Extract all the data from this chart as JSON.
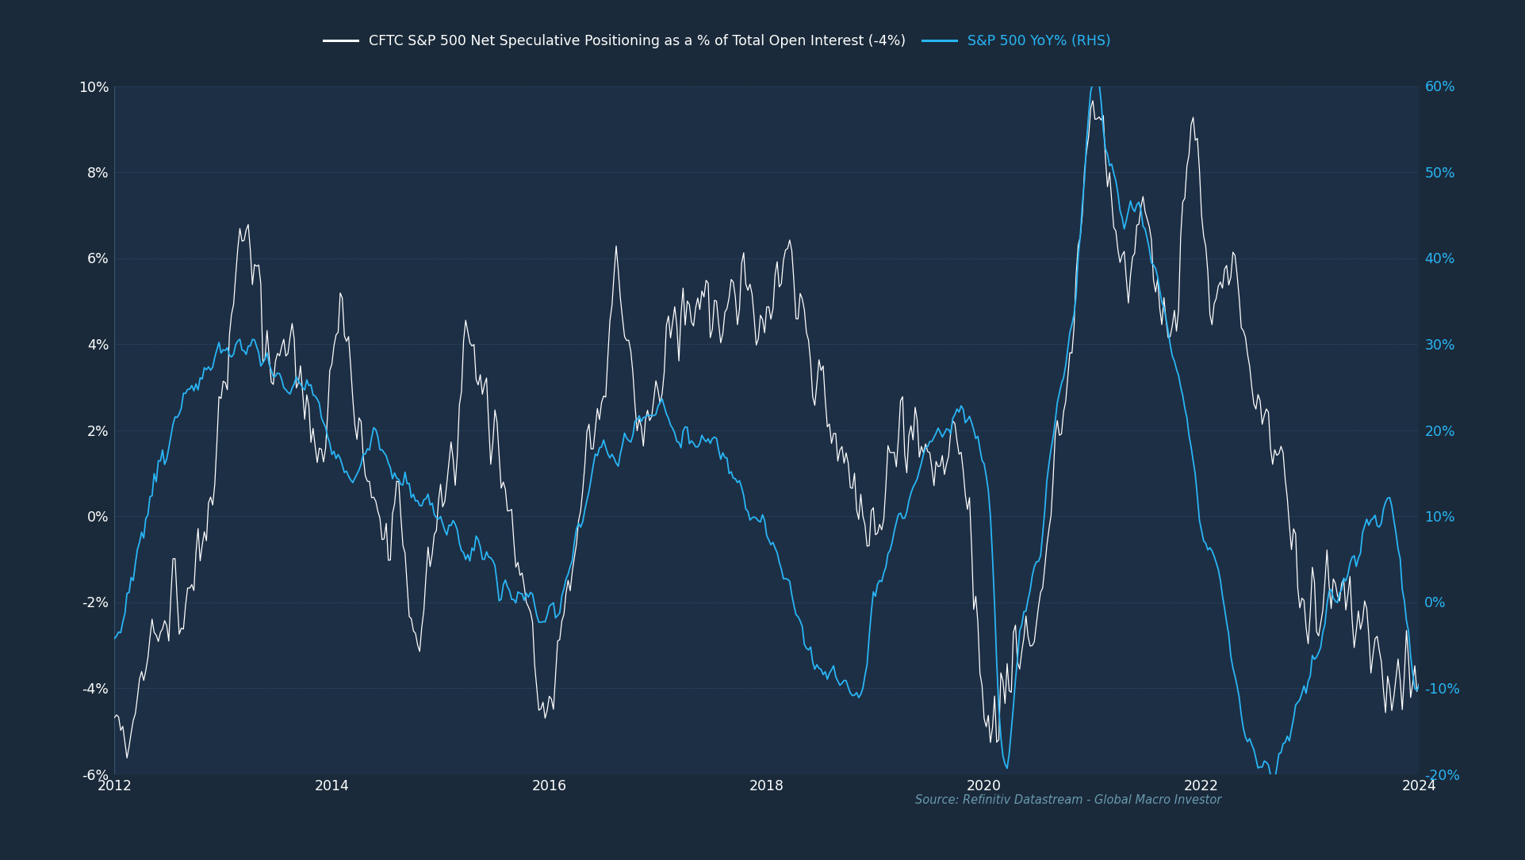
{
  "background_color": "#1a2a3a",
  "plot_bg_color": "#1e3350",
  "grid_color": "#2d4a6a",
  "white_line_color": "#ffffff",
  "blue_line_color": "#29b6f6",
  "title_white": "CFTC S&P 500 Net Speculative Positioning as a % of Total Open Interest (-4%)",
  "title_blue": "S&P 500 YoY% (RHS)",
  "source_text": "Source: Refinitiv Datastream - Global Macro Investor",
  "left_ylim": [
    -6,
    10
  ],
  "right_ylim": [
    -20,
    60
  ],
  "left_yticks": [
    -6,
    -4,
    -2,
    0,
    2,
    4,
    6,
    8,
    10
  ],
  "right_yticks": [
    -20,
    -10,
    0,
    10,
    20,
    30,
    40,
    50,
    60
  ],
  "left_ytick_labels": [
    "-6%",
    "-4%",
    "-2%",
    "0%",
    "2%",
    "4%",
    "6%",
    "8%",
    "10%"
  ],
  "right_ytick_labels": [
    "-20%",
    "-10%",
    "0%",
    "10%",
    "20%",
    "30%",
    "40%",
    "50%",
    "60%"
  ],
  "xtick_labels": [
    "2012",
    "2014",
    "2016",
    "2018",
    "2020",
    "2022",
    "2024"
  ]
}
